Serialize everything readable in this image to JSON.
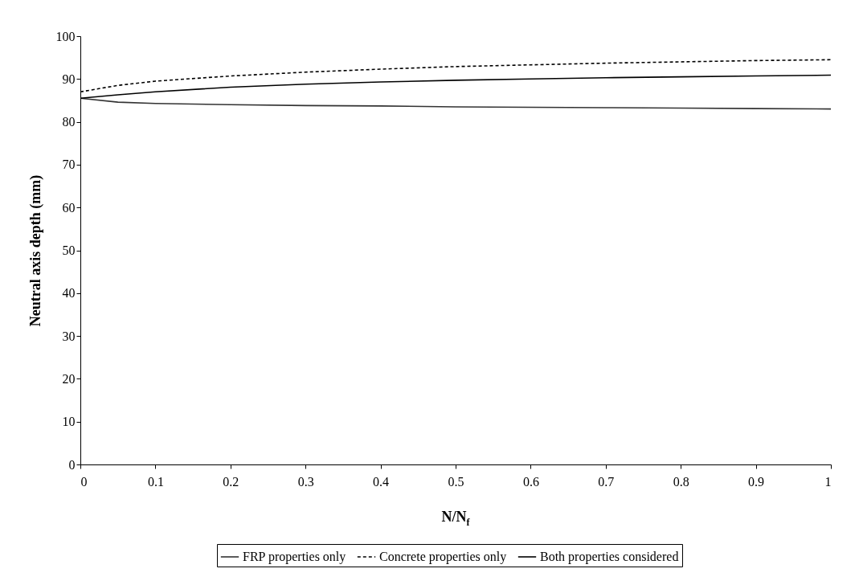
{
  "chart_data": {
    "type": "line",
    "xlabel": "N/N$_{f}$",
    "ylabel": "Neutral axis depth (mm)",
    "x": [
      0,
      0.05,
      0.1,
      0.2,
      0.3,
      0.4,
      0.5,
      0.6,
      0.7,
      0.8,
      0.9,
      1
    ],
    "series": [
      {
        "name": "FRP properties only",
        "color": "#333333",
        "line_style": "solid",
        "values": [
          85.5,
          84.6,
          84.3,
          84.0,
          83.8,
          83.7,
          83.5,
          83.4,
          83.3,
          83.2,
          83.1,
          83.0
        ]
      },
      {
        "name": "Concrete properties only",
        "color": "#000000",
        "line_style": "dashed",
        "values": [
          87.0,
          88.5,
          89.5,
          90.7,
          91.6,
          92.3,
          92.9,
          93.3,
          93.7,
          94.0,
          94.3,
          94.5
        ]
      },
      {
        "name": "Both properties considered",
        "color": "#000000",
        "line_style": "solid",
        "values": [
          85.5,
          86.3,
          87.0,
          88.1,
          88.8,
          89.3,
          89.7,
          90.0,
          90.3,
          90.5,
          90.7,
          90.9
        ]
      }
    ],
    "xlim": [
      0,
      1
    ],
    "xticks": [
      0,
      0.1,
      0.2,
      0.3,
      0.4,
      0.5,
      0.6,
      0.7,
      0.8,
      0.9,
      1
    ],
    "ylim": [
      0,
      100
    ],
    "yticks": [
      0,
      10,
      20,
      30,
      40,
      50,
      60,
      70,
      80,
      90,
      100
    ],
    "grid": false,
    "legend": "bottom",
    "marker": "none"
  }
}
